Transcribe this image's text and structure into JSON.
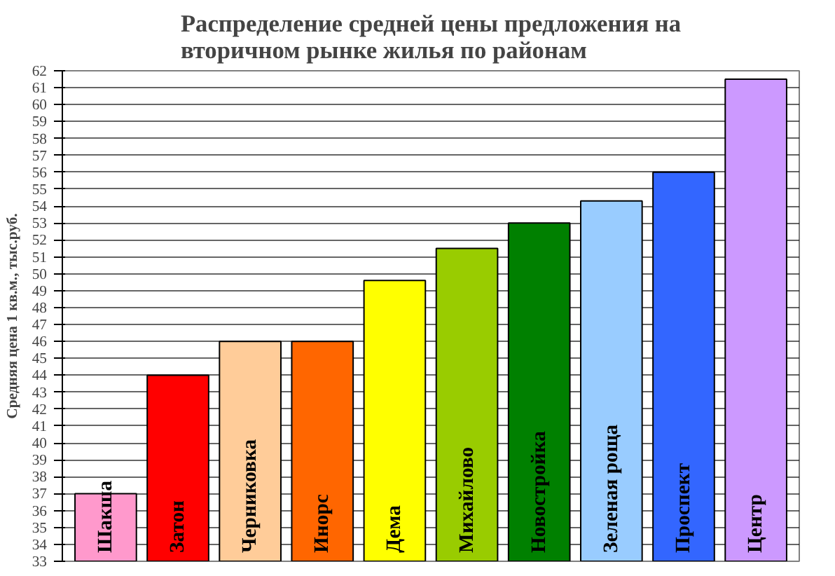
{
  "chart_data": {
    "type": "bar",
    "title": "Распределение средней цены предложения на\nвторичном рынке жилья по районам",
    "ylabel": "Средняя цена 1 кв.м., тыс.руб.",
    "categories": [
      "Шакша",
      "Затон",
      "Черниковка",
      "Инорс",
      "Дема",
      "Михайлово",
      "Новостройка",
      "Зеленая роща",
      "Проспект",
      "Центр"
    ],
    "values": [
      37,
      44,
      46,
      46,
      49.6,
      51.5,
      53,
      54.3,
      56,
      61.5
    ],
    "colors": [
      "#ff99cc",
      "#ff0000",
      "#ffcc99",
      "#ff6600",
      "#ffff00",
      "#99cc00",
      "#008000",
      "#99ccff",
      "#3366ff",
      "#cc99ff"
    ],
    "ylim": [
      33,
      62
    ],
    "yticks": [
      33,
      34,
      35,
      36,
      37,
      38,
      39,
      40,
      41,
      42,
      43,
      44,
      45,
      46,
      47,
      48,
      49,
      50,
      51,
      52,
      53,
      54,
      55,
      56,
      57,
      58,
      59,
      60,
      61,
      62
    ],
    "grid": "y"
  }
}
